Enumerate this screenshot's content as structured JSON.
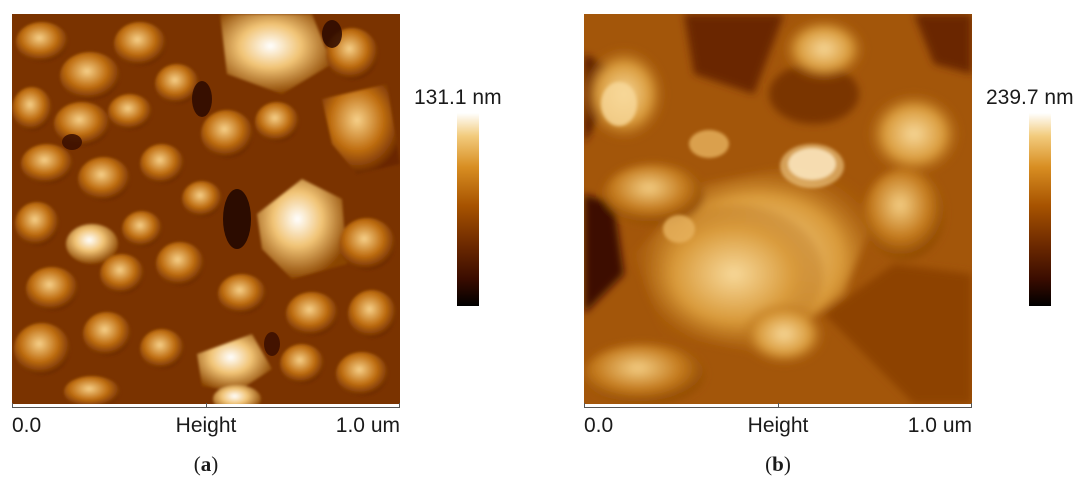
{
  "panels": [
    {
      "caption": {
        "open": "(",
        "letter": "a",
        "close": ")"
      },
      "scale_max_label": "131.1 nm",
      "axis": {
        "start": "0.0",
        "middle": "Height",
        "end": "1.0 um"
      }
    },
    {
      "caption": {
        "open": "(",
        "letter": "b",
        "close": ")"
      },
      "scale_max_label": "239.7 nm",
      "axis": {
        "start": "0.0",
        "middle": "Height",
        "end": "1.0 um"
      }
    }
  ],
  "colors": {
    "colormap": [
      "#000000",
      "#3a0c00",
      "#6e2a00",
      "#a75300",
      "#d88e22",
      "#f2cb7c",
      "#ffffff"
    ]
  }
}
